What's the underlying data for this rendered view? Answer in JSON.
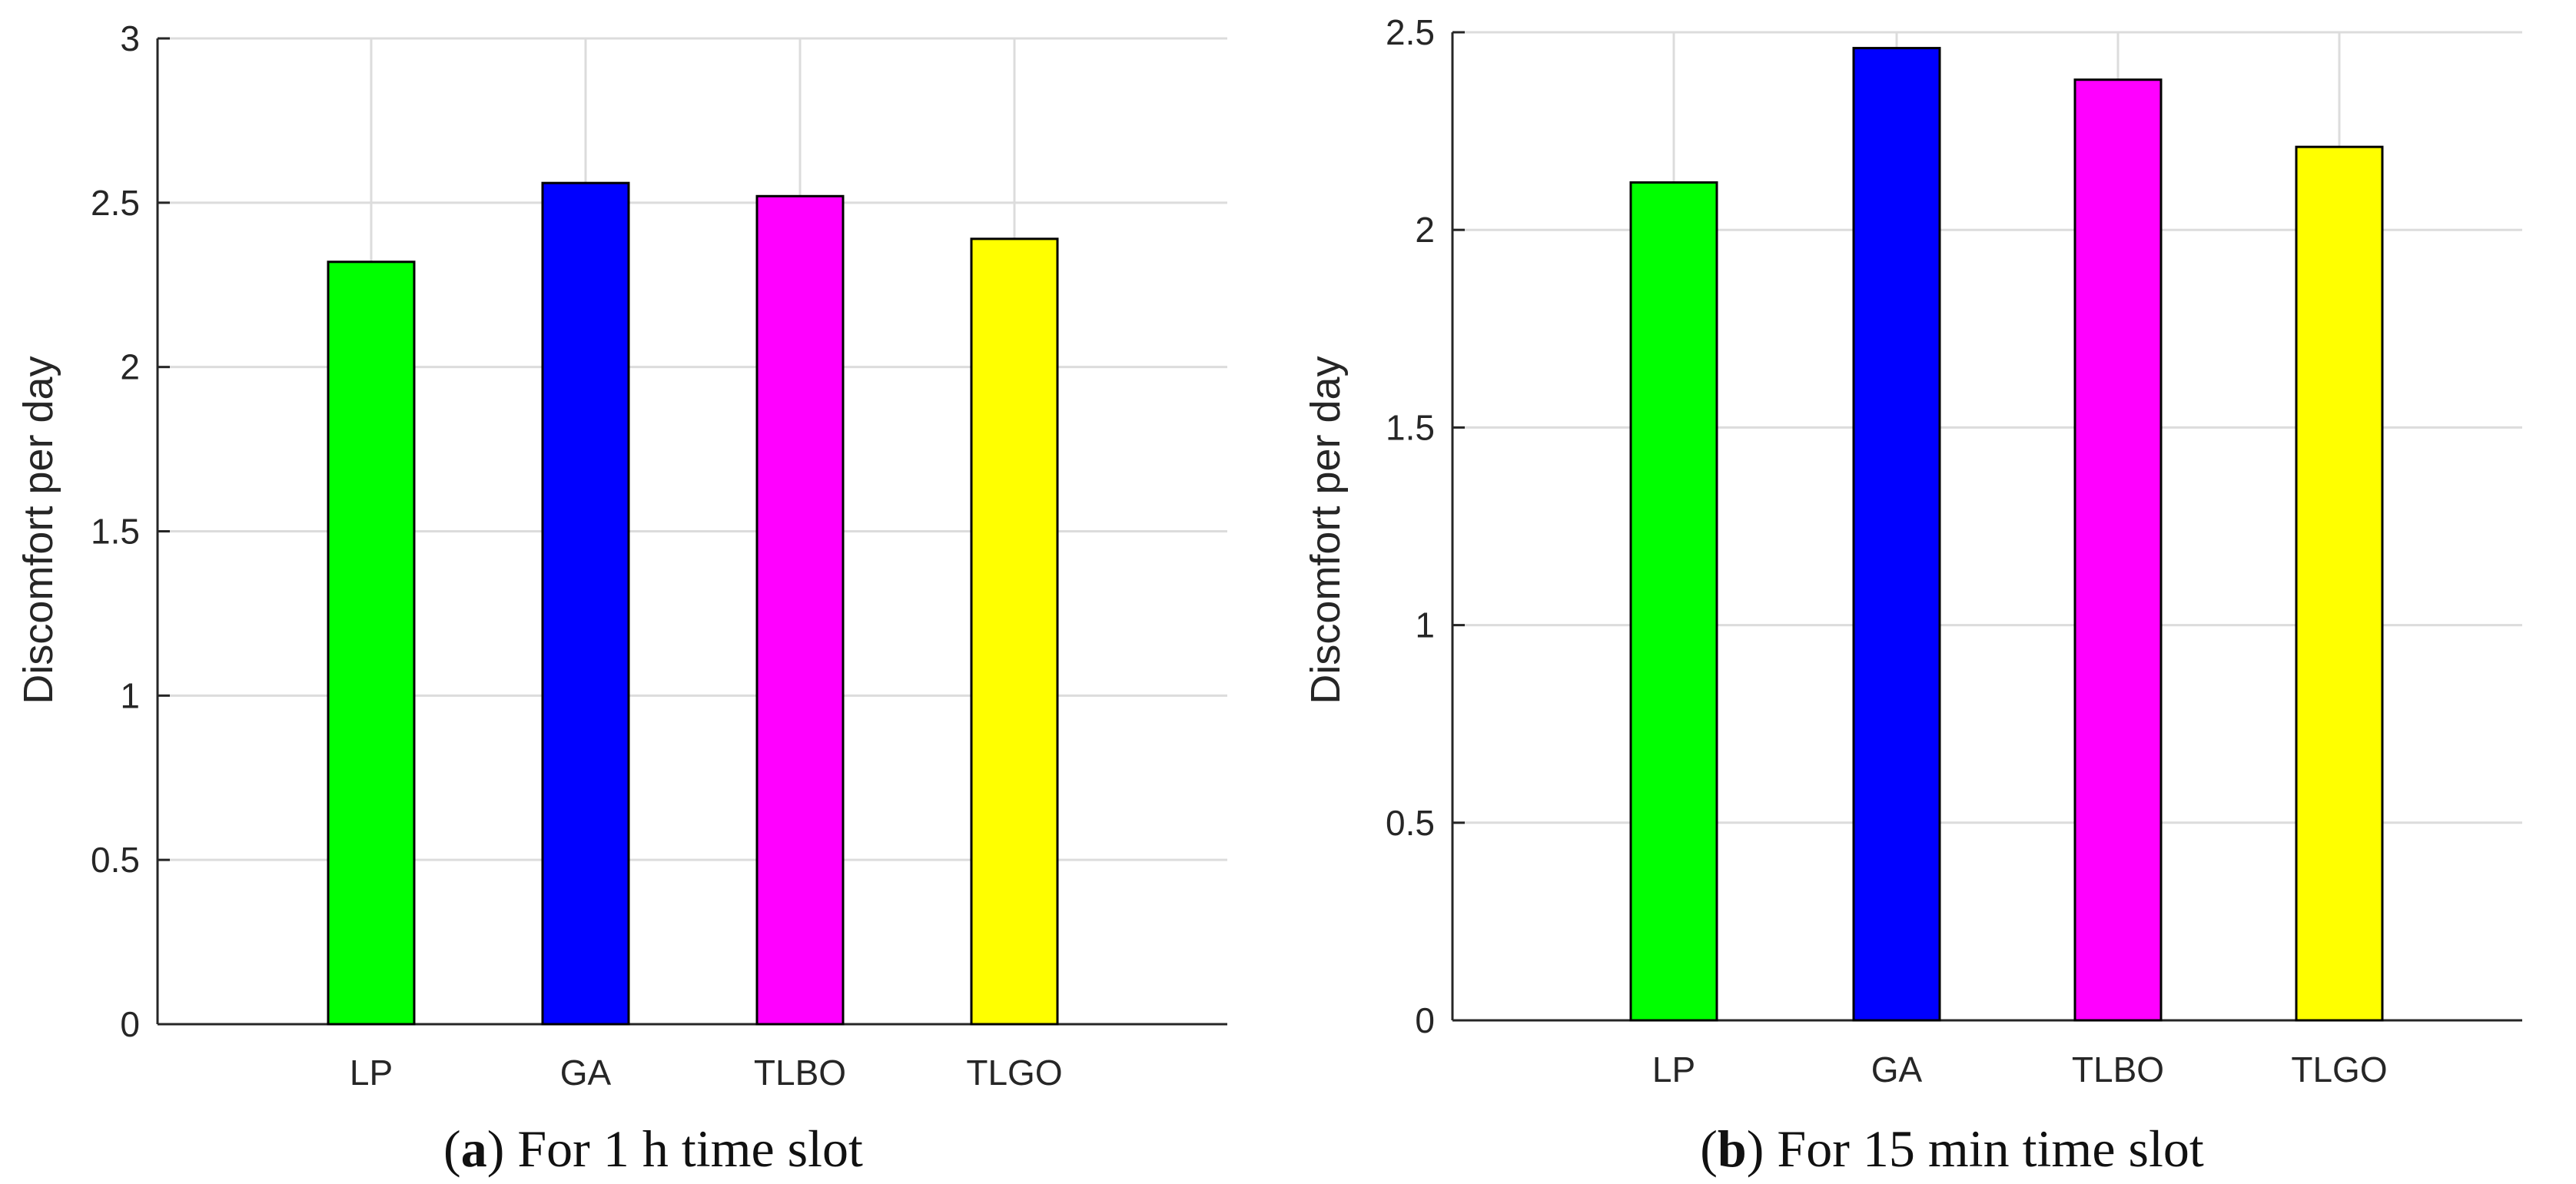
{
  "chart_data": [
    {
      "type": "bar",
      "panel": "a",
      "caption_text": "For 1 h time slot",
      "categories": [
        "LP",
        "GA",
        "TLBO",
        "TLGO"
      ],
      "values": [
        2.32,
        2.56,
        2.52,
        2.39
      ],
      "colors": [
        "#00ff00",
        "#0000ff",
        "#ff00ff",
        "#ffff00"
      ],
      "ylabel": "Discomfort per day",
      "xlabel": "",
      "ylim": [
        0,
        3
      ],
      "yticks": [
        0,
        0.5,
        1,
        1.5,
        2,
        2.5,
        3
      ],
      "ytick_labels": [
        "0",
        "0.5",
        "1",
        "1.5",
        "2",
        "2.5",
        "3"
      ],
      "grid": true
    },
    {
      "type": "bar",
      "panel": "b",
      "caption_text": "For 15 min time slot",
      "categories": [
        "LP",
        "GA",
        "TLBO",
        "TLGO"
      ],
      "values": [
        2.12,
        2.46,
        2.38,
        2.21
      ],
      "colors": [
        "#00ff00",
        "#0000ff",
        "#ff00ff",
        "#ffff00"
      ],
      "ylabel": "Discomfort per day",
      "xlabel": "",
      "ylim": [
        0,
        2.5
      ],
      "yticks": [
        0,
        0.5,
        1,
        1.5,
        2,
        2.5
      ],
      "ytick_labels": [
        "0",
        "0.5",
        "1",
        "1.5",
        "2",
        "2.5"
      ],
      "grid": true
    }
  ]
}
